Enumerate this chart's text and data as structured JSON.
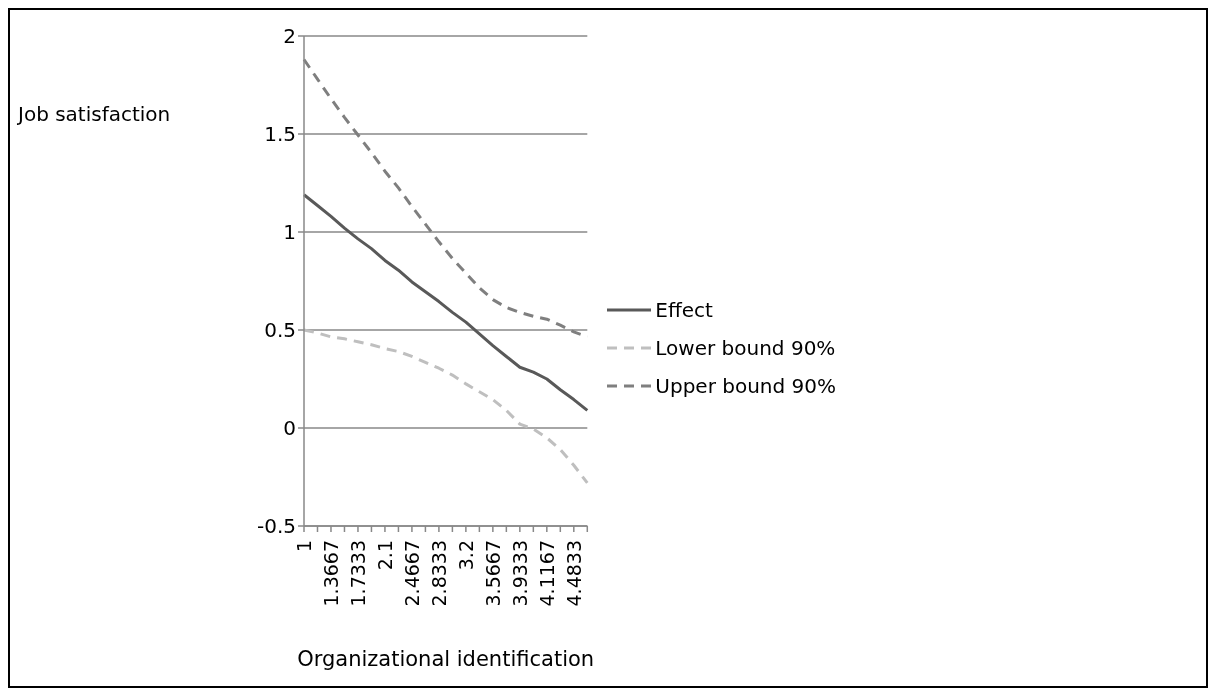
{
  "chart_data": {
    "type": "line",
    "xlabel": "Organizational identification",
    "ylabel": "Job satisfaction",
    "categories": [
      "1",
      null,
      "1.3667",
      null,
      "1.7333",
      null,
      "2.1",
      null,
      "2.4667",
      null,
      "2.8333",
      null,
      "3.2",
      null,
      "3.5667",
      null,
      "3.9333",
      null,
      "4.1167",
      null,
      "4.4833",
      null
    ],
    "series": [
      {
        "name": "Effect",
        "color": "#595959",
        "line_style": "solid",
        "values": [
          1.19,
          1.135,
          1.08,
          1.02,
          0.965,
          0.915,
          0.855,
          0.805,
          0.745,
          0.695,
          0.645,
          0.59,
          0.54,
          0.48,
          0.42,
          0.365,
          0.31,
          0.285,
          0.25,
          0.195,
          0.145,
          0.09
        ]
      },
      {
        "name": "Lower bound 90%",
        "color": "#bfbfbf",
        "line_style": "dashed",
        "values": [
          0.5,
          0.485,
          0.465,
          0.455,
          0.44,
          0.425,
          0.405,
          0.39,
          0.365,
          0.335,
          0.305,
          0.27,
          0.225,
          0.185,
          0.145,
          0.09,
          0.02,
          -0.005,
          -0.05,
          -0.11,
          -0.19,
          -0.28
        ]
      },
      {
        "name": "Upper bound 90%",
        "color": "#7f7f7f",
        "line_style": "dashed",
        "values": [
          1.88,
          1.78,
          1.68,
          1.585,
          1.495,
          1.405,
          1.31,
          1.225,
          1.13,
          1.04,
          0.95,
          0.865,
          0.79,
          0.715,
          0.655,
          0.615,
          0.59,
          0.57,
          0.555,
          0.525,
          0.49,
          0.465
        ]
      }
    ],
    "ylim": [
      -0.5,
      2
    ],
    "yticks": [
      -0.5,
      0,
      0.5,
      1,
      1.5,
      2
    ],
    "grid": "y",
    "legend": "right",
    "marker": "none"
  }
}
